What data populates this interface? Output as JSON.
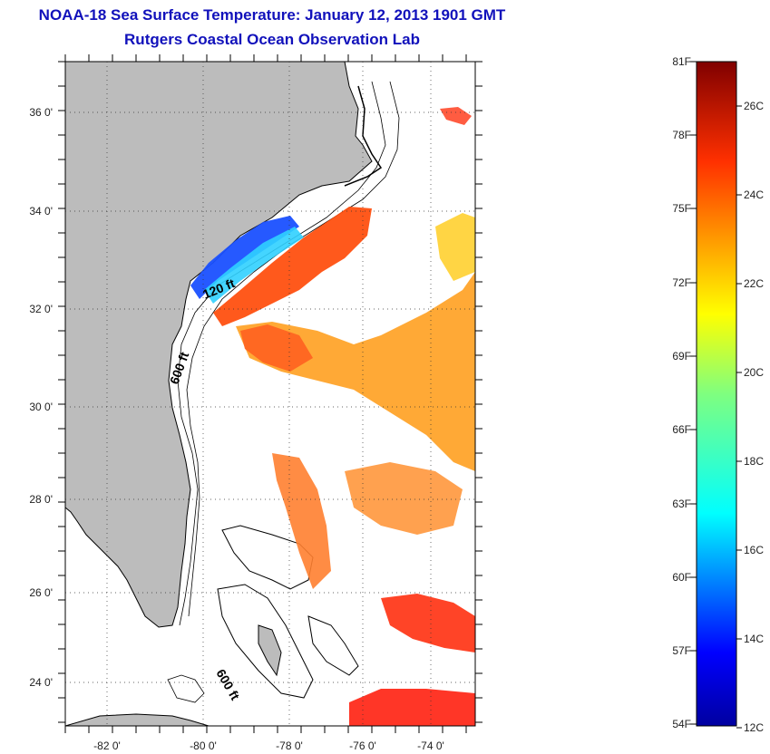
{
  "title": {
    "line1": "NOAA-18 Sea Surface Temperature:  January 12, 2013 1901 GMT",
    "line2": "Rutgers Coastal Ocean Observation Lab"
  },
  "map": {
    "lat_ticks": [
      "36 0'",
      "34 0'",
      "32 0'",
      "30 0'",
      "28 0'",
      "26 0'",
      "24 0'"
    ],
    "lon_ticks": [
      "-82 0'",
      "-80 0'",
      "-78 0'",
      "-76 0'",
      "-74 0'"
    ],
    "contour_labels": [
      "120 ft",
      "600 ft",
      "600 ft"
    ],
    "land_color": "#bcbcbc",
    "ocean_color": "#ffffff"
  },
  "colorbar": {
    "fahrenheit_labels": [
      "81F",
      "78F",
      "75F",
      "72F",
      "69F",
      "66F",
      "63F",
      "60F",
      "57F",
      "54F"
    ],
    "celsius_labels": [
      "26C",
      "24C",
      "22C",
      "20C",
      "18C",
      "16C",
      "14C",
      "12C"
    ],
    "colormap": "jet"
  }
}
